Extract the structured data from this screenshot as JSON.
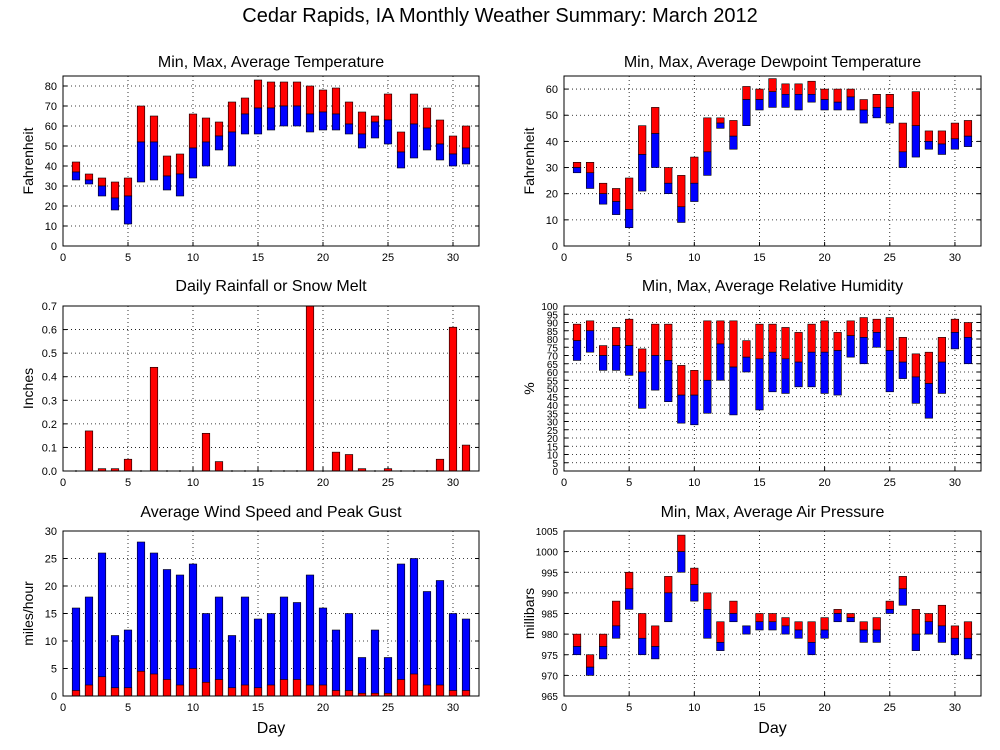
{
  "page_title": "Cedar Rapids, IA Monthly Weather Summary: March 2012",
  "colors": {
    "upper": "#ff0000",
    "lower": "#0000ff",
    "grid": "#000000",
    "frame": "#000000"
  },
  "x_axis": {
    "label": "Day",
    "range": [
      0,
      32
    ],
    "ticks": [
      0,
      5,
      10,
      15,
      20,
      25,
      30
    ]
  },
  "chart_data": [
    {
      "id": "temperature",
      "type": "bar",
      "title": "Min, Max, Average Temperature",
      "xlabel": "",
      "ylabel": "Fahrenheit",
      "ylim": [
        0,
        85
      ],
      "yticks": [
        0,
        10,
        20,
        30,
        40,
        50,
        60,
        70,
        80
      ],
      "grid": true,
      "days": [
        1,
        2,
        3,
        4,
        5,
        6,
        7,
        8,
        9,
        10,
        11,
        12,
        13,
        14,
        15,
        16,
        17,
        18,
        19,
        20,
        21,
        22,
        23,
        24,
        25,
        26,
        27,
        28,
        29,
        30,
        31
      ],
      "min": [
        33,
        31,
        25,
        18,
        11,
        32,
        33,
        28,
        25,
        34,
        40,
        48,
        40,
        56,
        56,
        58,
        60,
        60,
        57,
        58,
        58,
        56,
        49,
        54,
        51,
        39,
        44,
        48,
        43,
        40,
        41
      ],
      "avg": [
        37,
        33,
        30,
        24,
        25,
        52,
        52,
        35,
        36,
        49,
        52,
        55,
        57,
        66,
        69,
        69,
        70,
        70,
        66,
        67,
        66,
        61,
        56,
        62,
        63,
        47,
        61,
        59,
        51,
        46,
        49
      ],
      "max": [
        42,
        36,
        34,
        32,
        34,
        70,
        65,
        45,
        46,
        66,
        64,
        62,
        72,
        74,
        83,
        82,
        82,
        82,
        80,
        78,
        79,
        72,
        67,
        65,
        76,
        57,
        76,
        69,
        63,
        55,
        60
      ]
    },
    {
      "id": "dewpoint",
      "type": "bar",
      "title": "Min, Max, Average Dewpoint Temperature",
      "xlabel": "",
      "ylabel": "Fahrenheit",
      "ylim": [
        0,
        65
      ],
      "yticks": [
        0,
        10,
        20,
        30,
        40,
        50,
        60
      ],
      "grid": true,
      "days": [
        1,
        2,
        3,
        4,
        5,
        6,
        7,
        8,
        9,
        10,
        11,
        12,
        13,
        14,
        15,
        16,
        17,
        18,
        19,
        20,
        21,
        22,
        23,
        24,
        25,
        26,
        27,
        28,
        29,
        30,
        31
      ],
      "min": [
        28,
        22,
        16,
        12,
        7,
        21,
        30,
        20,
        9,
        17,
        27,
        45,
        37,
        46,
        52,
        53,
        53,
        52,
        55,
        52,
        52,
        52,
        47,
        49,
        47,
        30,
        34,
        37,
        35,
        37,
        38
      ],
      "avg": [
        30,
        28,
        20,
        17,
        14,
        35,
        43,
        24,
        15,
        24,
        36,
        47,
        42,
        56,
        56,
        59,
        58,
        58,
        58,
        56,
        55,
        57,
        52,
        53,
        53,
        36,
        46,
        40,
        39,
        41,
        42
      ],
      "max": [
        32,
        32,
        24,
        22,
        26,
        46,
        53,
        30,
        27,
        34,
        49,
        49,
        48,
        61,
        60,
        64,
        62,
        62,
        63,
        60,
        60,
        60,
        56,
        58,
        58,
        47,
        59,
        44,
        44,
        47,
        48
      ]
    },
    {
      "id": "rainfall",
      "type": "bar",
      "title": "Daily Rainfall or Snow Melt",
      "xlabel": "",
      "ylabel": "Inches",
      "ylim": [
        0,
        0.7
      ],
      "yticks": [
        0,
        0.1,
        0.2,
        0.3,
        0.4,
        0.5,
        0.6,
        0.7
      ],
      "ytick_labels": [
        "0.0",
        "0.1",
        "0.2",
        "0.3",
        "0.4",
        "0.5",
        "0.6",
        "0.7"
      ],
      "grid": true,
      "days": [
        1,
        2,
        3,
        4,
        5,
        6,
        7,
        8,
        9,
        10,
        11,
        12,
        13,
        14,
        15,
        16,
        17,
        18,
        19,
        20,
        21,
        22,
        23,
        24,
        25,
        26,
        27,
        28,
        29,
        30,
        31
      ],
      "values": [
        0,
        0.17,
        0.01,
        0.01,
        0.05,
        0,
        0.44,
        0,
        0,
        0,
        0.16,
        0.04,
        0,
        0,
        0,
        0,
        0,
        0,
        0.7,
        0,
        0.08,
        0.07,
        0.01,
        0,
        0.01,
        0,
        0,
        0,
        0.05,
        0.61,
        0.11
      ]
    },
    {
      "id": "humidity",
      "type": "bar",
      "title": "Min, Max, Average Relative Humidity",
      "xlabel": "",
      "ylabel": "%",
      "ylim": [
        0,
        100
      ],
      "yticks": [
        0,
        5,
        10,
        15,
        20,
        25,
        30,
        35,
        40,
        45,
        50,
        55,
        60,
        65,
        70,
        75,
        80,
        85,
        90,
        95,
        100
      ],
      "grid": true,
      "days": [
        1,
        2,
        3,
        4,
        5,
        6,
        7,
        8,
        9,
        10,
        11,
        12,
        13,
        14,
        15,
        16,
        17,
        18,
        19,
        20,
        21,
        22,
        23,
        24,
        25,
        26,
        27,
        28,
        29,
        30,
        31
      ],
      "min": [
        67,
        72,
        61,
        61,
        58,
        38,
        49,
        42,
        29,
        28,
        35,
        55,
        34,
        60,
        37,
        48,
        47,
        51,
        51,
        47,
        46,
        69,
        65,
        75,
        48,
        56,
        41,
        32,
        47,
        74,
        65
      ],
      "avg": [
        79,
        85,
        70,
        76,
        76,
        60,
        70,
        67,
        46,
        46,
        55,
        77,
        63,
        69,
        68,
        72,
        68,
        66,
        72,
        72,
        73,
        82,
        81,
        84,
        73,
        66,
        57,
        53,
        66,
        84,
        81
      ],
      "max": [
        89,
        91,
        76,
        87,
        92,
        74,
        89,
        89,
        64,
        61,
        91,
        91,
        91,
        79,
        89,
        89,
        87,
        84,
        89,
        91,
        84,
        91,
        93,
        92,
        93,
        81,
        71,
        72,
        81,
        92,
        90
      ]
    },
    {
      "id": "wind",
      "type": "bar",
      "title": "Average Wind Speed and Peak Gust",
      "xlabel": "Day",
      "ylabel": "miles/hour",
      "ylim": [
        0,
        30
      ],
      "yticks": [
        0,
        5,
        10,
        15,
        20,
        25,
        30
      ],
      "grid": true,
      "days": [
        1,
        2,
        3,
        4,
        5,
        6,
        7,
        8,
        9,
        10,
        11,
        12,
        13,
        14,
        15,
        16,
        17,
        18,
        19,
        20,
        21,
        22,
        23,
        24,
        25,
        26,
        27,
        28,
        29,
        30,
        31
      ],
      "avg_speed": [
        1,
        2,
        3.5,
        1.5,
        1.5,
        4.5,
        4,
        3,
        2,
        5,
        2.5,
        3,
        1.5,
        2,
        1.5,
        2,
        3,
        3,
        2,
        2,
        1,
        1,
        0.5,
        0.5,
        0.5,
        3,
        4,
        2,
        2,
        1,
        1
      ],
      "peak_gust": [
        16,
        18,
        26,
        11,
        12,
        28,
        26,
        23,
        22,
        24,
        15,
        18,
        11,
        18,
        14,
        15,
        18,
        17,
        22,
        16,
        12,
        15,
        7,
        12,
        7,
        24,
        25,
        19,
        21,
        15,
        14
      ]
    },
    {
      "id": "pressure",
      "type": "bar",
      "title": "Min, Max, Average Air Pressure",
      "xlabel": "Day",
      "ylabel": "millibars",
      "ylim": [
        965,
        1005
      ],
      "yticks": [
        965,
        970,
        975,
        980,
        985,
        990,
        995,
        1000,
        1005
      ],
      "grid": true,
      "days": [
        1,
        2,
        3,
        4,
        5,
        6,
        7,
        8,
        9,
        10,
        11,
        12,
        13,
        14,
        15,
        16,
        17,
        18,
        19,
        20,
        21,
        22,
        23,
        24,
        25,
        26,
        27,
        28,
        29,
        30,
        31
      ],
      "min": [
        975,
        970,
        974,
        979,
        986,
        975,
        974,
        983,
        995,
        988,
        979,
        976,
        983,
        980,
        981,
        981,
        980,
        979,
        975,
        979,
        983,
        983,
        978,
        978,
        985,
        987,
        976,
        980,
        978,
        975,
        974
      ],
      "avg": [
        977,
        972,
        977,
        982,
        991,
        979,
        977,
        990,
        1000,
        992,
        986,
        978,
        985,
        982,
        983,
        983,
        982,
        981,
        978,
        981,
        985,
        984,
        981,
        981,
        986,
        991,
        980,
        983,
        982,
        979,
        979
      ],
      "max": [
        980,
        975,
        980,
        988,
        995,
        985,
        982,
        994,
        1004,
        996,
        990,
        983,
        988,
        982,
        985,
        985,
        984,
        983,
        983,
        984,
        986,
        985,
        983,
        984,
        988,
        994,
        986,
        985,
        987,
        982,
        983
      ]
    }
  ]
}
